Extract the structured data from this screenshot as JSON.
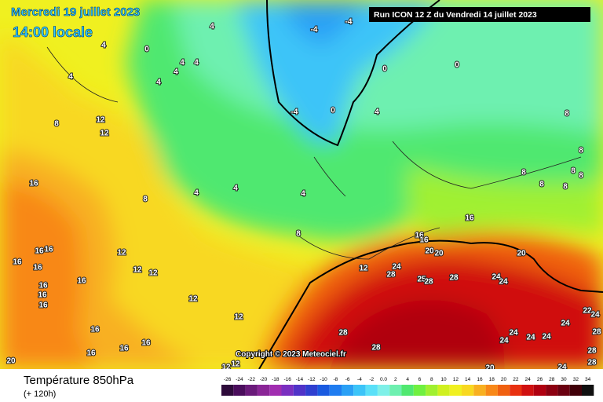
{
  "header": {
    "date": "Mercredi 19 juillet 2023",
    "time": "14:00 locale",
    "run": "Run ICON 12 Z du Vendredi 14 juillet 2023"
  },
  "copyright": "Copyright © 2023 Meteociel.fr",
  "footer": {
    "title": "Température 850hPa",
    "lead": "(+ 120h)"
  },
  "map": {
    "contour_labels": [
      "4",
      "4",
      "0",
      "4",
      "4",
      "4",
      "4",
      "4",
      "-4",
      "-4",
      "0",
      "0",
      "0",
      "-4",
      "4",
      "12",
      "8",
      "12",
      "8",
      "8",
      "8",
      "8",
      "8",
      "8",
      "8",
      "16",
      "8",
      "4",
      "4",
      "4",
      "8",
      "16",
      "16",
      "16",
      "16",
      "16",
      "16",
      "12",
      "16",
      "12",
      "12",
      "12",
      "24",
      "28",
      "20",
      "20",
      "20",
      "25",
      "28",
      "28",
      "24",
      "24",
      "16",
      "16",
      "16",
      "16",
      "12",
      "12",
      "16",
      "16",
      "16",
      "28",
      "28",
      "24",
      "24",
      "24",
      "24",
      "22",
      "24",
      "28",
      "28",
      "28",
      "24",
      "20",
      "12",
      "12",
      "20",
      "24",
      "16"
    ]
  },
  "legend": {
    "items": [
      {
        "label": "-26",
        "color": "#2d0a3a"
      },
      {
        "label": "-24",
        "color": "#4a0d5c"
      },
      {
        "label": "-22",
        "color": "#6a1a7a"
      },
      {
        "label": "-20",
        "color": "#8a2596"
      },
      {
        "label": "-18",
        "color": "#a12db0"
      },
      {
        "label": "-16",
        "color": "#7a2fc0"
      },
      {
        "label": "-14",
        "color": "#5033c8"
      },
      {
        "label": "-12",
        "color": "#2f3fd0"
      },
      {
        "label": "-10",
        "color": "#1a5ae0"
      },
      {
        "label": "-8",
        "color": "#1f7cf0"
      },
      {
        "label": "-6",
        "color": "#2aa0f5"
      },
      {
        "label": "-4",
        "color": "#3cc4f8"
      },
      {
        "label": "-2",
        "color": "#5ae0f8"
      },
      {
        "label": "0.0",
        "color": "#7ff0e8"
      },
      {
        "label": "2",
        "color": "#6ef0b0"
      },
      {
        "label": "4",
        "color": "#50e870"
      },
      {
        "label": "6",
        "color": "#70f040"
      },
      {
        "label": "8",
        "color": "#a0f030"
      },
      {
        "label": "10",
        "color": "#d0f020"
      },
      {
        "label": "12",
        "color": "#f0f020"
      },
      {
        "label": "14",
        "color": "#f8d820"
      },
      {
        "label": "16",
        "color": "#f8b020"
      },
      {
        "label": "18",
        "color": "#f88818"
      },
      {
        "label": "20",
        "color": "#f06010"
      },
      {
        "label": "22",
        "color": "#e83010"
      },
      {
        "label": "24",
        "color": "#d01010"
      },
      {
        "label": "26",
        "color": "#b00010"
      },
      {
        "label": "28",
        "color": "#8c0010"
      },
      {
        "label": "30",
        "color": "#6a0010"
      },
      {
        "label": "32",
        "color": "#400008"
      },
      {
        "label": "34",
        "color": "#101010"
      }
    ]
  }
}
